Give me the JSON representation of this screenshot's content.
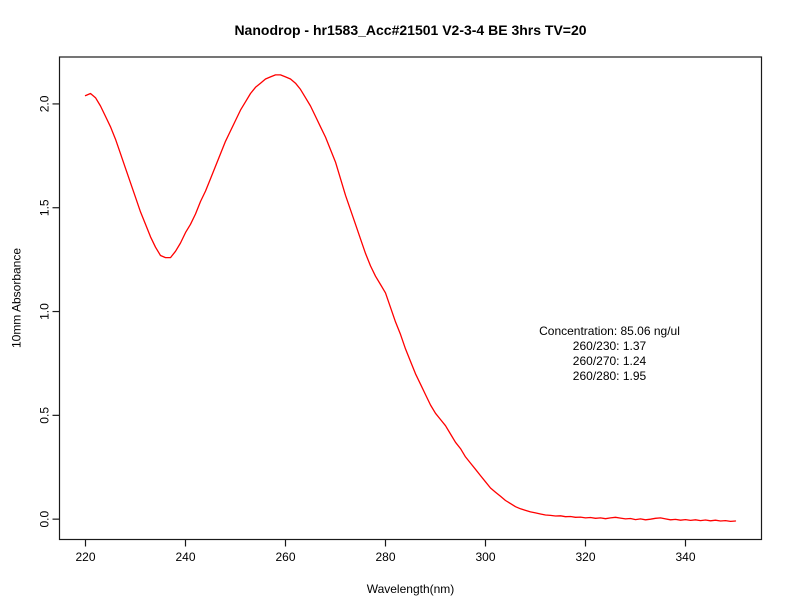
{
  "chart_data": {
    "type": "line",
    "title": "Nanodrop - hr1583_Acc#21501 V2-3-4 BE 3hrs TV=20",
    "xlabel": "Wavelength(nm)",
    "ylabel": "10mm Absorbance",
    "x_ticks": [
      220,
      240,
      260,
      280,
      300,
      320,
      340
    ],
    "y_tick_values": [
      0.0,
      0.5,
      1.0,
      1.5,
      2.0
    ],
    "y_tick_labels": [
      "0.0",
      "0.5",
      "1.0",
      "1.5",
      "2.0"
    ],
    "xlim": [
      214.8,
      355.2
    ],
    "ylim": [
      -0.098,
      2.226
    ],
    "grid": false,
    "legend": "none",
    "line_color": "#ff0000",
    "axis_color": "#000000",
    "background_color": "#ffffff",
    "annotation": {
      "x": 324.8,
      "y": 0.886,
      "lines": [
        "Concentration: 85.06 ng/ul",
        "260/230: 1.37",
        "260/270: 1.24",
        "260/280: 1.95"
      ]
    },
    "series": [
      {
        "name": "absorbance-spectrum",
        "x": [
          220,
          221,
          222,
          223,
          224,
          225,
          226,
          227,
          228,
          229,
          230,
          231,
          232,
          233,
          234,
          235,
          236,
          237,
          238,
          239,
          240,
          241,
          242,
          243,
          244,
          245,
          246,
          247,
          248,
          249,
          250,
          251,
          252,
          253,
          254,
          255,
          256,
          257,
          258,
          259,
          260,
          261,
          262,
          263,
          264,
          265,
          266,
          267,
          268,
          269,
          270,
          271,
          272,
          273,
          274,
          275,
          276,
          277,
          278,
          279,
          280,
          281,
          282,
          283,
          284,
          285,
          286,
          287,
          288,
          289,
          290,
          291,
          292,
          293,
          294,
          295,
          296,
          297,
          298,
          299,
          300,
          301,
          302,
          303,
          304,
          305,
          306,
          307,
          308,
          309,
          310,
          311,
          312,
          313,
          314,
          315,
          316,
          317,
          318,
          319,
          320,
          321,
          322,
          323,
          324,
          325,
          326,
          327,
          328,
          329,
          330,
          331,
          332,
          333,
          334,
          335,
          336,
          337,
          338,
          339,
          340,
          341,
          342,
          343,
          344,
          345,
          346,
          347,
          348,
          349,
          350
        ],
        "y": [
          2.04,
          2.05,
          2.03,
          1.99,
          1.94,
          1.89,
          1.83,
          1.76,
          1.69,
          1.62,
          1.55,
          1.48,
          1.42,
          1.36,
          1.31,
          1.27,
          1.26,
          1.26,
          1.29,
          1.33,
          1.38,
          1.42,
          1.47,
          1.53,
          1.58,
          1.64,
          1.7,
          1.76,
          1.82,
          1.87,
          1.92,
          1.97,
          2.01,
          2.05,
          2.08,
          2.1,
          2.12,
          2.13,
          2.14,
          2.14,
          2.13,
          2.12,
          2.1,
          2.07,
          2.03,
          1.99,
          1.94,
          1.89,
          1.84,
          1.78,
          1.72,
          1.64,
          1.56,
          1.49,
          1.42,
          1.35,
          1.28,
          1.22,
          1.17,
          1.13,
          1.09,
          1.02,
          0.95,
          0.89,
          0.82,
          0.76,
          0.7,
          0.65,
          0.6,
          0.55,
          0.51,
          0.48,
          0.45,
          0.41,
          0.37,
          0.34,
          0.3,
          0.27,
          0.24,
          0.21,
          0.18,
          0.15,
          0.13,
          0.11,
          0.09,
          0.075,
          0.06,
          0.05,
          0.042,
          0.035,
          0.03,
          0.025,
          0.02,
          0.018,
          0.015,
          0.016,
          0.012,
          0.013,
          0.009,
          0.01,
          0.006,
          0.008,
          0.004,
          0.006,
          0.002,
          0.006,
          0.009,
          0.005,
          0.001,
          0.003,
          -0.002,
          0.001,
          -0.003,
          0.0,
          0.004,
          0.006,
          0.001,
          -0.003,
          -0.001,
          -0.005,
          -0.002,
          -0.006,
          -0.003,
          -0.007,
          -0.004,
          -0.008,
          -0.005,
          -0.009,
          -0.007,
          -0.011,
          -0.009
        ]
      }
    ]
  }
}
